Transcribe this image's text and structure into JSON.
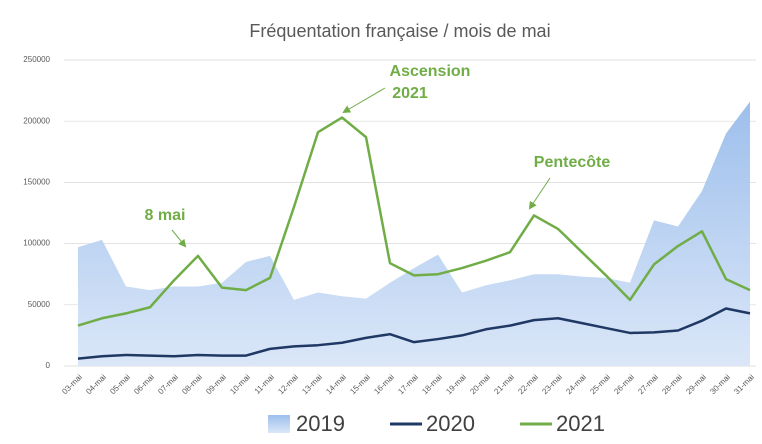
{
  "chart_data": {
    "type": "area-line",
    "title": "Fréquentation française /  mois de mai",
    "categories": [
      "03-mai",
      "04-mai",
      "05-mai",
      "06-mai",
      "07-mai",
      "08-mai",
      "09-mai",
      "10-mai",
      "11-mai",
      "12-mai",
      "13-mai",
      "14-mai",
      "15-mai",
      "16-mai",
      "17-mai",
      "18-mai",
      "19-mai",
      "20-mai",
      "21-mai",
      "22-mai",
      "23-mai",
      "24-mai",
      "25-mai",
      "26-mai",
      "27-mai",
      "28-mai",
      "29-mai",
      "30-mai",
      "31-mai"
    ],
    "series": [
      {
        "name": "2019",
        "kind": "area",
        "color": "#9dbfec",
        "values": [
          97000,
          103000,
          65000,
          62000,
          65000,
          65000,
          68000,
          85000,
          90000,
          54000,
          60000,
          57000,
          55000,
          68000,
          80000,
          91000,
          60000,
          66000,
          70000,
          75000,
          75000,
          73000,
          72000,
          68000,
          119000,
          114000,
          143000,
          190000,
          216000
        ]
      },
      {
        "name": "2020",
        "kind": "line",
        "color": "#1f3864",
        "values": [
          6000,
          8000,
          9000,
          8500,
          8000,
          9000,
          8500,
          8500,
          14000,
          16000,
          17000,
          19000,
          23000,
          26000,
          19500,
          22000,
          25000,
          30000,
          33000,
          37500,
          39000,
          35000,
          31000,
          27000,
          27500,
          29000,
          37000,
          47000,
          43000
        ]
      },
      {
        "name": "2021",
        "kind": "line",
        "color": "#70ad47",
        "values": [
          33000,
          39000,
          43000,
          48000,
          70000,
          90000,
          64000,
          62000,
          72000,
          130000,
          191000,
          203000,
          187000,
          84000,
          74000,
          75000,
          80000,
          86000,
          93000,
          123000,
          112000,
          93000,
          74000,
          54000,
          83000,
          98000,
          110000,
          71000,
          62000
        ]
      }
    ],
    "ylim": [
      0,
      250000
    ],
    "yticks": [
      0,
      50000,
      100000,
      150000,
      200000,
      250000
    ],
    "grid": true,
    "annotations": [
      [
        "8 mai"
      ],
      [
        "Ascension",
        "2021"
      ],
      [
        "Pentecôte"
      ]
    ]
  }
}
